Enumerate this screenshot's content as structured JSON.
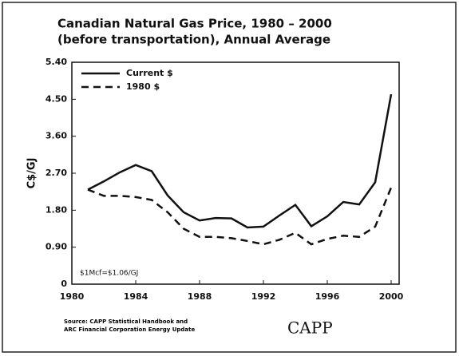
{
  "chart_data": {
    "type": "line",
    "title": "Canadian Natural Gas Price, 1980 – 2000",
    "subtitle": "(before transportation), Annual Average",
    "y_label": "C$/GJ",
    "annotation": "$1Mcf=$1.06/GJ",
    "source": "Source: CAPP Statistical Handbook and ARC Financial Corporation Energy Update",
    "logo": "CAPP",
    "x": [
      1981,
      1982,
      1983,
      1984,
      1985,
      1986,
      1987,
      1988,
      1989,
      1990,
      1991,
      1992,
      1993,
      1994,
      1995,
      1996,
      1997,
      1998,
      1999,
      2000
    ],
    "series": [
      {
        "name": "Current $",
        "color": "#111111",
        "dash": false,
        "values": [
          2.3,
          2.5,
          2.72,
          2.9,
          2.75,
          2.16,
          1.75,
          1.55,
          1.61,
          1.6,
          1.38,
          1.4,
          1.67,
          1.93,
          1.41,
          1.65,
          2.0,
          1.94,
          2.48,
          4.62
        ]
      },
      {
        "name": "1980 $",
        "color": "#111111",
        "dash": true,
        "values": [
          2.3,
          2.15,
          2.15,
          2.12,
          2.05,
          1.75,
          1.35,
          1.15,
          1.15,
          1.12,
          1.05,
          0.97,
          1.08,
          1.25,
          0.97,
          1.1,
          1.18,
          1.15,
          1.4,
          2.35
        ]
      }
    ],
    "xlim": [
      1980,
      2000
    ],
    "xticks": [
      1980,
      1984,
      1988,
      1992,
      1996,
      2000
    ],
    "ylim": [
      0,
      5.4
    ],
    "yticks": [
      0,
      {
        "value": 0.9,
        "label": "0.90"
      },
      {
        "value": 1.8,
        "label": "1.80"
      },
      {
        "value": 2.7,
        "label": "2.70"
      },
      {
        "value": 3.6,
        "label": "3.60"
      },
      {
        "value": 4.5,
        "label": "4.50"
      },
      {
        "value": 5.4,
        "label": "5.40"
      }
    ],
    "legend": "upper left"
  }
}
